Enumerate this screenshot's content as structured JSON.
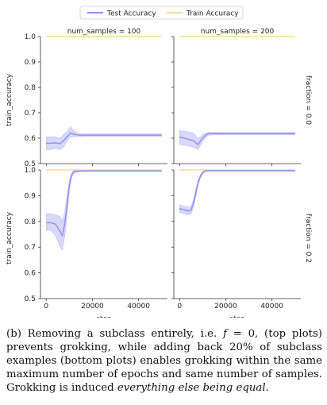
{
  "legend": {
    "items": [
      {
        "label": "Test Accuracy",
        "color": "#8f8ff2"
      },
      {
        "label": "Train Accuracy",
        "color": "#f8d9a4"
      }
    ]
  },
  "chart_data": {
    "type": "line",
    "x_label": "step",
    "y_label": "train_accuracy",
    "x_ticks": [
      0,
      20000,
      40000
    ],
    "x_tick_labels": [
      "0",
      "20000",
      "40000"
    ],
    "x_range": [
      -2500,
      52500
    ],
    "y_ticks": [
      0.5,
      0.6,
      0.7,
      0.8,
      0.9,
      1.0
    ],
    "y_tick_labels": [
      "0.5",
      "0.6",
      "0.7",
      "0.8",
      "0.9",
      "1.0"
    ],
    "col_titles": [
      "num_samples = 100",
      "num_samples = 200"
    ],
    "row_titles": [
      "fraction = 0.0",
      "fraction = 0.2"
    ],
    "row_ylim": [
      [
        0.5,
        1.0
      ],
      [
        0.5,
        1.0
      ]
    ],
    "panels": [
      {
        "row": 0,
        "col": 0,
        "train": {
          "x": [
            0,
            50000
          ],
          "y": [
            1.0,
            1.0
          ]
        },
        "test": {
          "x": [
            0,
            2000,
            4000,
            6000,
            7500,
            9000,
            10500,
            12000,
            14000,
            17000,
            22000,
            30000,
            40000,
            50000
          ],
          "y": [
            0.58,
            0.58,
            0.582,
            0.578,
            0.59,
            0.605,
            0.62,
            0.615,
            0.612,
            0.612,
            0.612,
            0.612,
            0.612,
            0.612
          ],
          "lower": [
            0.555,
            0.555,
            0.56,
            0.555,
            0.565,
            0.59,
            0.605,
            0.606,
            0.606,
            0.607,
            0.607,
            0.607,
            0.607,
            0.607
          ],
          "upper": [
            0.605,
            0.605,
            0.605,
            0.6,
            0.615,
            0.625,
            0.645,
            0.628,
            0.618,
            0.617,
            0.617,
            0.617,
            0.617,
            0.617
          ]
        }
      },
      {
        "row": 0,
        "col": 1,
        "train": {
          "x": [
            0,
            50000
          ],
          "y": [
            1.0,
            1.0
          ]
        },
        "test": {
          "x": [
            0,
            2000,
            4000,
            6000,
            8000,
            9500,
            11000,
            12500,
            15000,
            20000,
            30000,
            40000,
            50000
          ],
          "y": [
            0.605,
            0.6,
            0.595,
            0.59,
            0.575,
            0.595,
            0.61,
            0.618,
            0.618,
            0.618,
            0.618,
            0.618,
            0.618
          ],
          "lower": [
            0.575,
            0.572,
            0.57,
            0.565,
            0.555,
            0.58,
            0.6,
            0.612,
            0.613,
            0.614,
            0.614,
            0.614,
            0.614
          ],
          "upper": [
            0.63,
            0.627,
            0.625,
            0.62,
            0.6,
            0.61,
            0.62,
            0.623,
            0.623,
            0.622,
            0.622,
            0.622,
            0.622
          ]
        }
      },
      {
        "row": 1,
        "col": 0,
        "train": {
          "x": [
            0,
            50000
          ],
          "y": [
            1.0,
            1.0
          ]
        },
        "test": {
          "x": [
            0,
            2000,
            4000,
            6000,
            7000,
            8000,
            9000,
            10000,
            11000,
            12000,
            14000,
            17000,
            22000,
            30000,
            40000,
            50000
          ],
          "y": [
            0.795,
            0.795,
            0.79,
            0.76,
            0.745,
            0.79,
            0.86,
            0.94,
            0.98,
            0.993,
            0.996,
            0.996,
            0.996,
            0.996,
            0.996,
            0.996
          ],
          "lower": [
            0.765,
            0.765,
            0.745,
            0.7,
            0.69,
            0.74,
            0.82,
            0.92,
            0.97,
            0.988,
            0.993,
            0.994,
            0.994,
            0.994,
            0.994,
            0.994
          ],
          "upper": [
            0.83,
            0.83,
            0.825,
            0.82,
            0.8,
            0.84,
            0.9,
            0.96,
            0.99,
            0.997,
            0.998,
            0.998,
            0.998,
            0.998,
            0.998,
            0.998
          ]
        }
      },
      {
        "row": 1,
        "col": 1,
        "train": {
          "x": [
            0,
            50000
          ],
          "y": [
            1.0,
            1.0
          ]
        },
        "test": {
          "x": [
            0,
            2000,
            4000,
            5000,
            6000,
            7000,
            8000,
            9000,
            10000,
            11000,
            12000,
            14000,
            18000,
            25000,
            35000,
            50000
          ],
          "y": [
            0.85,
            0.845,
            0.84,
            0.845,
            0.87,
            0.91,
            0.95,
            0.975,
            0.99,
            0.995,
            0.997,
            0.997,
            0.997,
            0.997,
            0.997,
            0.997
          ],
          "lower": [
            0.835,
            0.83,
            0.825,
            0.83,
            0.855,
            0.895,
            0.94,
            0.968,
            0.985,
            0.992,
            0.995,
            0.995,
            0.995,
            0.995,
            0.995,
            0.995
          ],
          "upper": [
            0.865,
            0.86,
            0.855,
            0.86,
            0.885,
            0.925,
            0.96,
            0.982,
            0.995,
            0.998,
            0.999,
            0.999,
            0.999,
            0.999,
            0.999,
            0.999
          ]
        }
      }
    ]
  },
  "caption": {
    "label": "(b)",
    "text": " Removing a subclass entirely, i.e. ",
    "math_f": "f",
    "math_eq": " = 0, (top plots) prevents grokking, while adding back 20% of subclass examples (bottom plots) enables grokking within the same maximum number of epochs and same number of samples. Grokking is induced ",
    "emphasis": "everything else being equal",
    "end": "."
  }
}
